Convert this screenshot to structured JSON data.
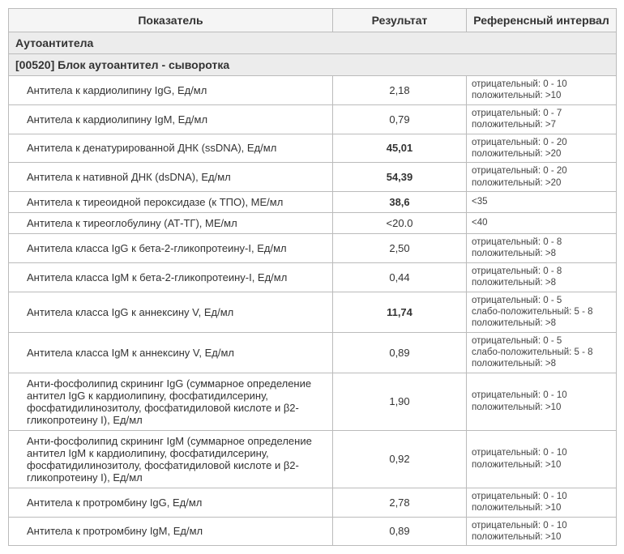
{
  "headers": {
    "indicator": "Показатель",
    "result": "Результат",
    "reference": "Референсный интервал"
  },
  "section": "Аутоантитела",
  "subsection": "[00520] Блок аутоантител - сыворотка",
  "rows": [
    {
      "name": "Антитела к кардиолипину  IgG, Ед/мл",
      "result": "2,18",
      "bold": false,
      "ref": "отрицательный:  0 - 10\nположительный:  >10"
    },
    {
      "name": "Антитела к кардиолипину  IgM, Ед/мл",
      "result": "0,79",
      "bold": false,
      "ref": "отрицательный:  0 - 7\nположительный:  >7"
    },
    {
      "name": "Антитела к денатурированной ДНК (ssDNA), Ед/мл",
      "result": "45,01",
      "bold": true,
      "ref": "отрицательный:  0 - 20\nположительный:  >20"
    },
    {
      "name": "Антитела к нативной ДНК (dsDNA), Ед/мл",
      "result": "54,39",
      "bold": true,
      "ref": "отрицательный:  0 - 20\nположительный:  >20"
    },
    {
      "name": "Антитела к тиреоидной пероксидазе (к ТПО), МЕ/мл",
      "result": "38,6",
      "bold": true,
      "ref": "<35"
    },
    {
      "name": "Антитела к тиреоглобулину (АТ-ТГ), МЕ/мл",
      "result": "<20.0",
      "bold": false,
      "ref": "<40"
    },
    {
      "name": "Антитела класса IgG к бета-2-гликопротеину-I, Ед/мл",
      "result": "2,50",
      "bold": false,
      "ref": "отрицательный:  0 - 8\nположительный:  >8"
    },
    {
      "name": "Антитела класса IgM к бета-2-гликопротеину-I, Ед/мл",
      "result": "0,44",
      "bold": false,
      "ref": "отрицательный:  0 - 8\nположительный:  >8"
    },
    {
      "name": "Антитела класса IgG к аннексину V, Ед/мл",
      "result": "11,74",
      "bold": true,
      "ref": "отрицательный:  0 - 5\nслабо-положительный:  5 - 8\nположительный:  >8"
    },
    {
      "name": "Антитела класса IgM к аннексину V, Ед/мл",
      "result": "0,89",
      "bold": false,
      "ref": "отрицательный:  0 - 5\nслабо-положительный:  5 - 8\nположительный:  >8"
    },
    {
      "name": "Анти-фосфолипид скрининг IgG (суммарное определение антител IgG к кардиолипину, фосфатидилсерину, фосфатидилинозитолу, фосфатидиловой кислоте и β2-гликопротеину I), Ед/мл",
      "result": "1,90",
      "bold": false,
      "ref": "отрицательный:  0 - 10\nположительный:  >10"
    },
    {
      "name": "Анти-фосфолипид скрининг IgM (суммарное определение антител IgM к кардиолипину, фосфатидилсерину, фосфатидилинозитолу, фосфатидиловой кислоте и β2-гликопротеину I), Ед/мл",
      "result": "0,92",
      "bold": false,
      "ref": "отрицательный:  0 - 10\nположительный:  >10"
    },
    {
      "name": "Антитела к протромбину  IgG, Ед/мл",
      "result": "2,78",
      "bold": false,
      "ref": "отрицательный:  0 - 10\nположительный:  >10"
    },
    {
      "name": "Антитела к протромбину  IgM, Ед/мл",
      "result": "0,89",
      "bold": false,
      "ref": "отрицательный:  0 - 10\nположительный:  >10"
    }
  ]
}
